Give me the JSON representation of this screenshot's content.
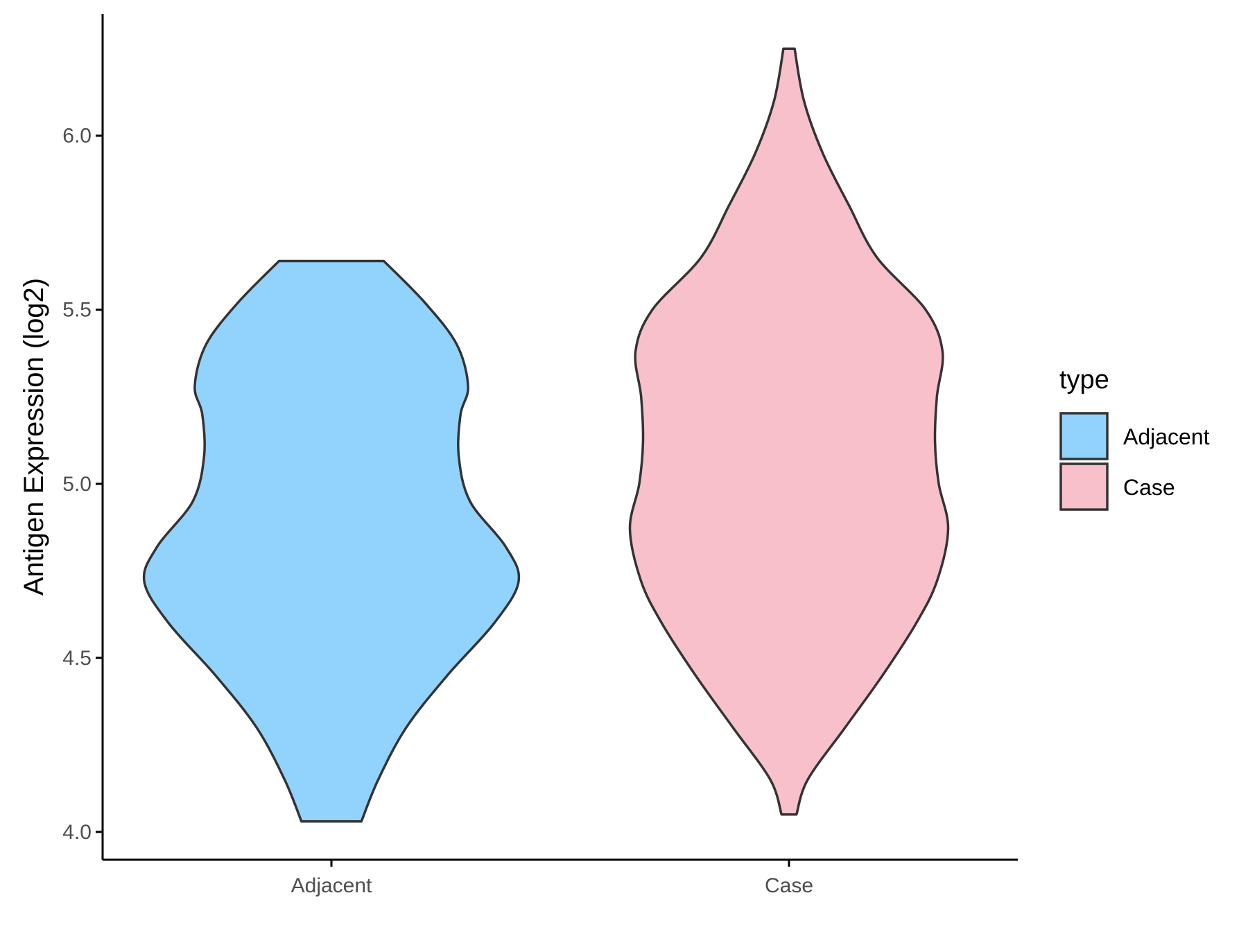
{
  "chart_data": {
    "type": "violin",
    "title": "",
    "xlabel": "",
    "ylabel": "Antigen Expression (log2)",
    "ylim": [
      3.92,
      6.35
    ],
    "yticks": [
      4.0,
      4.5,
      5.0,
      5.5,
      6.0
    ],
    "ytick_labels": [
      "4.0",
      "4.5",
      "5.0",
      "5.5",
      "6.0"
    ],
    "categories": [
      "Adjacent",
      "Case"
    ],
    "grid": false,
    "legend": {
      "title": "type",
      "position": "right",
      "entries": [
        {
          "label": "Adjacent",
          "color": "#92D3FE"
        },
        {
          "label": "Case",
          "color": "#F7C0CB"
        }
      ]
    },
    "series": [
      {
        "name": "Adjacent",
        "color": "#92D3FE",
        "min": 4.03,
        "max": 5.64,
        "density_profile": [
          {
            "y": 4.03,
            "half_width": 0.16
          },
          {
            "y": 4.15,
            "half_width": 0.25
          },
          {
            "y": 4.3,
            "half_width": 0.4
          },
          {
            "y": 4.45,
            "half_width": 0.62
          },
          {
            "y": 4.6,
            "half_width": 0.87
          },
          {
            "y": 4.72,
            "half_width": 1.0
          },
          {
            "y": 4.82,
            "half_width": 0.93
          },
          {
            "y": 4.95,
            "half_width": 0.74
          },
          {
            "y": 5.08,
            "half_width": 0.68
          },
          {
            "y": 5.2,
            "half_width": 0.69
          },
          {
            "y": 5.28,
            "half_width": 0.73
          },
          {
            "y": 5.4,
            "half_width": 0.67
          },
          {
            "y": 5.52,
            "half_width": 0.5
          },
          {
            "y": 5.64,
            "half_width": 0.28
          }
        ]
      },
      {
        "name": "Case",
        "color": "#F7C0CB",
        "min": 4.05,
        "max": 6.25,
        "density_profile": [
          {
            "y": 4.05,
            "half_width": 0.04
          },
          {
            "y": 4.15,
            "half_width": 0.1
          },
          {
            "y": 4.3,
            "half_width": 0.3
          },
          {
            "y": 4.45,
            "half_width": 0.5
          },
          {
            "y": 4.6,
            "half_width": 0.68
          },
          {
            "y": 4.72,
            "half_width": 0.79
          },
          {
            "y": 4.87,
            "half_width": 0.85
          },
          {
            "y": 5.0,
            "half_width": 0.8
          },
          {
            "y": 5.12,
            "half_width": 0.78
          },
          {
            "y": 5.25,
            "half_width": 0.79
          },
          {
            "y": 5.38,
            "half_width": 0.82
          },
          {
            "y": 5.5,
            "half_width": 0.73
          },
          {
            "y": 5.65,
            "half_width": 0.47
          },
          {
            "y": 5.8,
            "half_width": 0.32
          },
          {
            "y": 5.95,
            "half_width": 0.18
          },
          {
            "y": 6.1,
            "half_width": 0.08
          },
          {
            "y": 6.25,
            "half_width": 0.03
          }
        ]
      }
    ]
  }
}
